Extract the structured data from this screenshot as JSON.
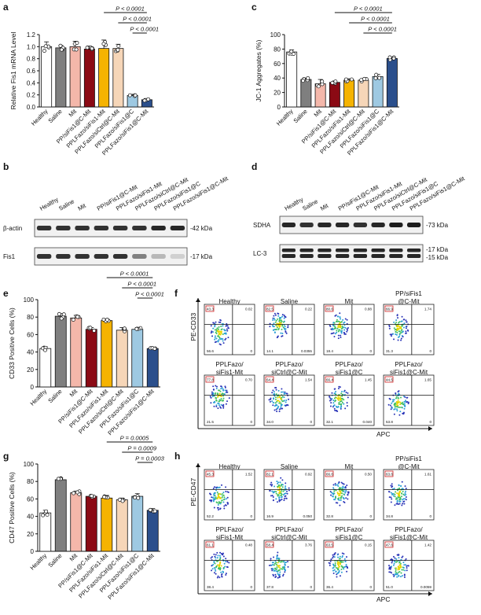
{
  "groups": [
    "Healthy",
    "Saline",
    "Mit",
    "PP/siFis1@C-Mit",
    "PPLFazo/siFis1-Mit",
    "PPLFazo/siCtrl@C-Mit",
    "PPLFazo/siFis1@C",
    "PPLFazo/siFis1@C-Mit"
  ],
  "colors": [
    "#ffffff",
    "#7f7f7f",
    "#f4b7aa",
    "#8b0a14",
    "#f5b301",
    "#f6d6b8",
    "#9ec9e2",
    "#2b4f8c"
  ],
  "chart_data": [
    {
      "panel": "a",
      "type": "bar",
      "ylabel": "Relative Fis1 mRNA Level",
      "ylim": [
        0,
        1.2
      ],
      "yticks": [
        "0.0",
        "0.2",
        "0.4",
        "0.6",
        "0.8",
        "1.0",
        "1.2"
      ],
      "values": [
        1.0,
        0.98,
        1.0,
        0.96,
        0.97,
        0.97,
        0.19,
        0.12
      ],
      "errors": [
        0.08,
        0.04,
        0.09,
        0.05,
        0.14,
        0.07,
        0.02,
        0.02
      ],
      "significance": [
        {
          "label": "P < 0.0001",
          "from": 4,
          "to": 7
        },
        {
          "label": "P < 0.0001",
          "from": 5,
          "to": 7
        },
        {
          "label": "P < 0.0001",
          "from": 6,
          "to": 7
        }
      ]
    },
    {
      "panel": "c",
      "type": "bar",
      "ylabel": "JC-1 Aggregates (%)",
      "ylim": [
        0,
        100
      ],
      "yticks": [
        "0",
        "20",
        "40",
        "60",
        "80",
        "100"
      ],
      "values": [
        76,
        38,
        32,
        34,
        37,
        37,
        42,
        67
      ],
      "errors": [
        3,
        2,
        6,
        2,
        2,
        2,
        3,
        2
      ],
      "significance": [
        {
          "label": "P < 0.0001",
          "from": 3,
          "to": 7
        },
        {
          "label": "P < 0.0001",
          "from": 4,
          "to": 7
        },
        {
          "label": "P < 0.0001",
          "from": 5,
          "to": 7
        }
      ]
    },
    {
      "panel": "e",
      "type": "bar",
      "ylabel": "CD33 Positive Cells (%)",
      "ylim": [
        0,
        100
      ],
      "yticks": [
        "0",
        "20",
        "40",
        "60",
        "80",
        "100"
      ],
      "values": [
        44,
        81,
        79,
        66,
        76,
        65,
        66,
        44
      ],
      "errors": [
        2,
        3,
        3,
        2,
        2,
        3,
        2,
        1
      ],
      "significance": [
        {
          "label": "P < 0.0001",
          "from": 4,
          "to": 7
        },
        {
          "label": "P < 0.0001",
          "from": 5,
          "to": 7
        },
        {
          "label": "P < 0.0001",
          "from": 6,
          "to": 7
        }
      ]
    },
    {
      "panel": "g",
      "type": "bar",
      "ylabel": "CD47 Positive Cells (%)",
      "ylim": [
        0,
        100
      ],
      "yticks": [
        "0",
        "20",
        "40",
        "60",
        "80",
        "100"
      ],
      "values": [
        44,
        82,
        67,
        63,
        61,
        59,
        63,
        47
      ],
      "errors": [
        3,
        2,
        2,
        1,
        3,
        2,
        3,
        2
      ],
      "significance": [
        {
          "label": "P = 0.0005",
          "from": 4,
          "to": 7
        },
        {
          "label": "P = 0.0009",
          "from": 5,
          "to": 7
        },
        {
          "label": "P = 0.0003",
          "from": 6,
          "to": 7
        }
      ]
    }
  ],
  "blot_b": {
    "panel": "b",
    "rows": [
      {
        "name": "β-actin",
        "kda": "-42 kDa",
        "intensity": [
          0.85,
          0.85,
          0.85,
          0.85,
          0.85,
          0.85,
          0.9,
          0.9
        ]
      },
      {
        "name": "Fis1",
        "kda": "-17 kDa",
        "intensity": [
          0.85,
          0.85,
          0.85,
          0.85,
          0.85,
          0.5,
          0.25,
          0.15
        ]
      }
    ]
  },
  "blot_d": {
    "panel": "d",
    "rows": [
      {
        "name": "SDHA",
        "kda": "-73 kDa",
        "intensity": [
          0.9,
          0.85,
          0.9,
          0.9,
          0.85,
          0.9,
          0.95,
          0.95
        ]
      },
      {
        "name": "LC-3",
        "kda": "-17 kDa",
        "kda2": "-15 kDa",
        "intensity": [
          0.9,
          0.9,
          0.9,
          0.9,
          0.9,
          0.9,
          0.9,
          0.9
        ]
      }
    ]
  },
  "flow_f": {
    "panel": "f",
    "yaxis": "PE-CD33",
    "xaxis": "APC",
    "plots": [
      {
        "title": [
          "Healthy"
        ],
        "q1": "43.3",
        "q2": "0.02",
        "q3": "0",
        "q4": "56.6"
      },
      {
        "title": [
          "Saline"
        ],
        "q1": "82.5",
        "q2": "0.22",
        "q3": "0.0355",
        "q4": "14.1"
      },
      {
        "title": [
          "Mit"
        ],
        "q1": "80.6",
        "q2": "0.88",
        "q3": "0",
        "q4": "18.4"
      },
      {
        "title": [
          "PP/siFis1",
          "@C-Mit"
        ],
        "q1": "66.9",
        "q2": "1.74",
        "q3": "0",
        "q4": "31.3"
      },
      {
        "title": [
          "PPLFazo/",
          "siFis1-Mit"
        ],
        "q1": "77.8",
        "q2": "0.70",
        "q3": "0",
        "q4": "21.5"
      },
      {
        "title": [
          "PPLFazo/",
          "siCtrl@C-Mit"
        ],
        "q1": "64.4",
        "q2": "1.54",
        "q3": "0",
        "q4": "34.0"
      },
      {
        "title": [
          "PPLFazo/",
          "siFis1@C"
        ],
        "q1": "66.4",
        "q2": "1.45",
        "q3": "0.040",
        "q4": "32.1"
      },
      {
        "title": [
          "PPLFazo/",
          "siFis1@C-Mit"
        ],
        "q1": "44.5",
        "q2": "1.65",
        "q3": "0",
        "q4": "53.8"
      }
    ]
  },
  "flow_h": {
    "panel": "h",
    "yaxis": "PE-CD47",
    "xaxis": "APC",
    "plots": [
      {
        "title": [
          "Healthy"
        ],
        "q1": "45.3",
        "q2": "1.52",
        "q3": "0",
        "q4": "52.2"
      },
      {
        "title": [
          "Saline"
        ],
        "q1": "82.1",
        "q2": "0.92",
        "q3": "0.050",
        "q4": "16.9"
      },
      {
        "title": [
          "Mit"
        ],
        "q1": "66.6",
        "q2": "0.50",
        "q3": "0",
        "q4": "32.8"
      },
      {
        "title": [
          "PP/siFis1",
          "@C-Mit"
        ],
        "q1": "63.6",
        "q2": "1.61",
        "q3": "0",
        "q4": "34.8"
      },
      {
        "title": [
          "PPLFazo/",
          "siFis1-Mit"
        ],
        "q1": "61.1",
        "q2": "0.48",
        "q3": "0",
        "q4": "38.4"
      },
      {
        "title": [
          "PPLFazo/",
          "siCtrl@C-Mit"
        ],
        "q1": "58.4",
        "q2": "3.76",
        "q3": "0",
        "q4": "37.8"
      },
      {
        "title": [
          "PPLFazo/",
          "siFis1@C"
        ],
        "q1": "63.5",
        "q2": "0.15",
        "q3": "0",
        "q4": "36.4"
      },
      {
        "title": [
          "PPLFazo/",
          "siFis1@C-Mit"
        ],
        "q1": "47.6",
        "q2": "1.42",
        "q3": "0.0059",
        "q4": "51.0"
      }
    ]
  }
}
